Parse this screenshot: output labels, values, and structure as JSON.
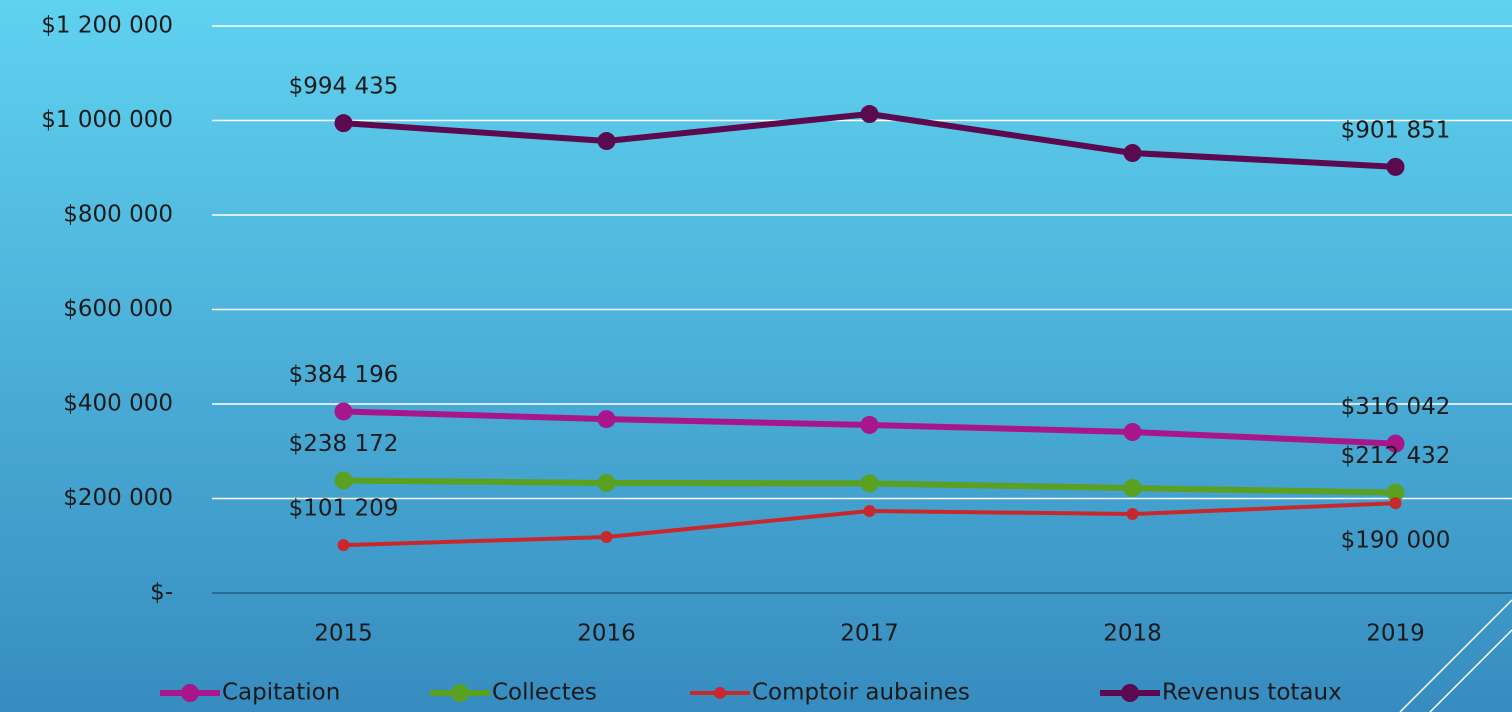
{
  "chart_data": {
    "type": "line",
    "categories": [
      "2015",
      "2016",
      "2017",
      "2018",
      "2019"
    ],
    "series": [
      {
        "name": "Capitation",
        "color": "#a8168c",
        "values": [
          384196,
          368000,
          355600,
          340700,
          316042
        ],
        "value_labels": [
          "$384 196",
          null,
          null,
          null,
          "$316 042"
        ]
      },
      {
        "name": "Collectes",
        "color": "#5aa021",
        "values": [
          238172,
          232800,
          232000,
          222200,
          212432
        ],
        "value_labels": [
          "$238 172",
          null,
          null,
          null,
          "$212 432"
        ]
      },
      {
        "name": "Comptoir aubaines",
        "color": "#c8282c",
        "values": [
          101209,
          118500,
          173500,
          167200,
          190000
        ],
        "value_labels": [
          "$101 209",
          null,
          null,
          null,
          "$190 000"
        ]
      },
      {
        "name": "Revenus totaux",
        "color": "#5c0a4f",
        "values": [
          994435,
          956600,
          1013700,
          931200,
          901851
        ],
        "value_labels": [
          "$994 435",
          null,
          null,
          null,
          "$901 851"
        ]
      }
    ],
    "ylim": [
      0,
      1200000
    ],
    "yticks": [
      {
        "value": 0,
        "label": "$-"
      },
      {
        "value": 200000,
        "label": "$200 000"
      },
      {
        "value": 400000,
        "label": "$400 000"
      },
      {
        "value": 600000,
        "label": "$600 000"
      },
      {
        "value": 800000,
        "label": "$800 000"
      },
      {
        "value": 1000000,
        "label": "$1 000 000"
      },
      {
        "value": 1200000,
        "label": "$1 200 000"
      }
    ],
    "grid": true,
    "legend": "bottom"
  }
}
